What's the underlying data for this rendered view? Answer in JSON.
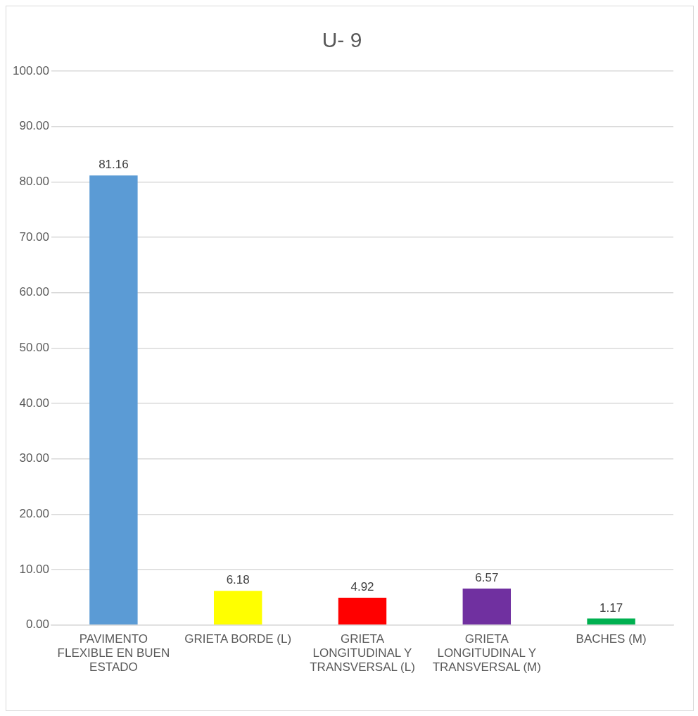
{
  "chart_data": {
    "type": "bar",
    "title": "U- 9",
    "categories": [
      "PAVIMENTO FLEXIBLE EN BUEN ESTADO",
      "GRIETA BORDE (L)",
      "GRIETA LONGITUDINAL Y TRANSVERSAL (L)",
      "GRIETA LONGITUDINAL Y TRANSVERSAL (M)",
      "BACHES (M)"
    ],
    "values": [
      81.16,
      6.18,
      4.92,
      6.57,
      1.17
    ],
    "colors": [
      "#5b9bd5",
      "#ffff00",
      "#ff0000",
      "#7030a0",
      "#00b050"
    ],
    "ylim": [
      0,
      100
    ],
    "yticks": [
      {
        "value": 0,
        "label": "0.00"
      },
      {
        "value": 10,
        "label": "10.00"
      },
      {
        "value": 20,
        "label": "20.00"
      },
      {
        "value": 30,
        "label": "30.00"
      },
      {
        "value": 40,
        "label": "40.00"
      },
      {
        "value": 50,
        "label": "50.00"
      },
      {
        "value": 60,
        "label": "60.00"
      },
      {
        "value": 70,
        "label": "70.00"
      },
      {
        "value": 80,
        "label": "80.00"
      },
      {
        "value": 90,
        "label": "90.00"
      },
      {
        "value": 100,
        "label": "100.00"
      }
    ],
    "grid": "y",
    "legend": false,
    "data_labels": true
  }
}
